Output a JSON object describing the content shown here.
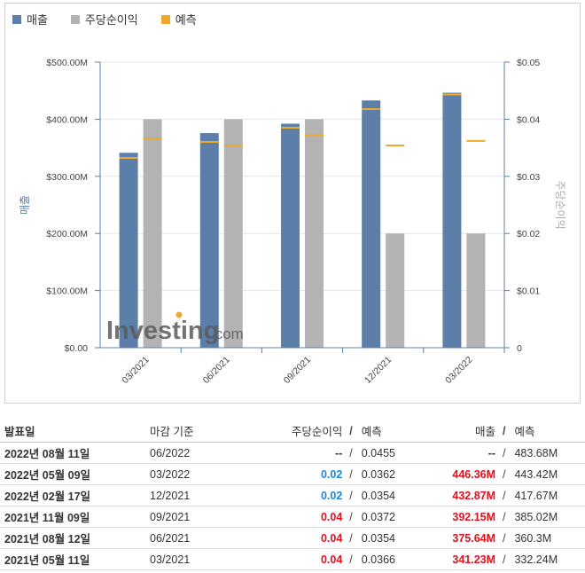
{
  "legend": [
    {
      "label": "매출",
      "color": "#5b7fa8"
    },
    {
      "label": "주당순이익",
      "color": "#b3b3b3"
    },
    {
      "label": "예측",
      "color": "#f0a82a"
    }
  ],
  "chart_data": {
    "type": "bar",
    "categories": [
      "03/2021",
      "06/2021",
      "09/2021",
      "12/2021",
      "03/2022"
    ],
    "series": [
      {
        "name": "매출",
        "axis": "left",
        "values": [
          341.23,
          375.64,
          392.15,
          432.87,
          446.36
        ],
        "color": "#5b7fa8"
      },
      {
        "name": "주당순이익",
        "axis": "right",
        "values": [
          0.04,
          0.04,
          0.04,
          0.02,
          0.02
        ],
        "color": "#b3b3b3"
      }
    ],
    "forecast": {
      "name": "예측",
      "color": "#f0a82a",
      "revenue": [
        332.24,
        360.3,
        385.02,
        417.67,
        443.42
      ],
      "eps": [
        0.0366,
        0.0354,
        0.0372,
        0.0354,
        0.0362
      ]
    },
    "left_axis": {
      "label": "매출",
      "ticks": [
        "$0.00",
        "$100.00M",
        "$200.00M",
        "$300.00M",
        "$400.00M",
        "$500.00M"
      ],
      "ylim": [
        0,
        500
      ]
    },
    "right_axis": {
      "label": "주당순이익",
      "ticks": [
        "0",
        "$0.01",
        "$0.02",
        "$0.03",
        "$0.04",
        "$0.05"
      ],
      "ylim": [
        0,
        0.05
      ]
    },
    "watermark": "Investing.com"
  },
  "table": {
    "headers": {
      "date": "발표일",
      "period": "마감 기준",
      "eps": "주당순이익",
      "eps_sep": "/",
      "eps_fc": "예측",
      "rev": "매출",
      "rev_sep": "/",
      "rev_fc": "예측"
    },
    "rows": [
      {
        "date": "2022년 08월 11일",
        "period": "06/2022",
        "eps": "--",
        "eps_class": "neutral",
        "sep1": "/",
        "eps_fc": "0.0455",
        "rev": "--",
        "rev_class": "neutral",
        "sep2": "/",
        "rev_fc": "483.68M"
      },
      {
        "date": "2022년 05월 09일",
        "period": "03/2022",
        "eps": "0.02",
        "eps_class": "pos",
        "sep1": "/",
        "eps_fc": "0.0362",
        "rev": "446.36M",
        "rev_class": "neg",
        "sep2": "/",
        "rev_fc": "443.42M"
      },
      {
        "date": "2022년 02월 17일",
        "period": "12/2021",
        "eps": "0.02",
        "eps_class": "pos",
        "sep1": "/",
        "eps_fc": "0.0354",
        "rev": "432.87M",
        "rev_class": "neg",
        "sep2": "/",
        "rev_fc": "417.67M"
      },
      {
        "date": "2021년 11월 09일",
        "period": "09/2021",
        "eps": "0.04",
        "eps_class": "neg",
        "sep1": "/",
        "eps_fc": "0.0372",
        "rev": "392.15M",
        "rev_class": "neg",
        "sep2": "/",
        "rev_fc": "385.02M"
      },
      {
        "date": "2021년 08월 12일",
        "period": "06/2021",
        "eps": "0.04",
        "eps_class": "neg",
        "sep1": "/",
        "eps_fc": "0.0354",
        "rev": "375.64M",
        "rev_class": "neg",
        "sep2": "/",
        "rev_fc": "360.3M"
      },
      {
        "date": "2021년 05월 11일",
        "period": "03/2021",
        "eps": "0.04",
        "eps_class": "neg",
        "sep1": "/",
        "eps_fc": "0.0366",
        "rev": "341.23M",
        "rev_class": "neg",
        "sep2": "/",
        "rev_fc": "332.24M"
      }
    ]
  }
}
